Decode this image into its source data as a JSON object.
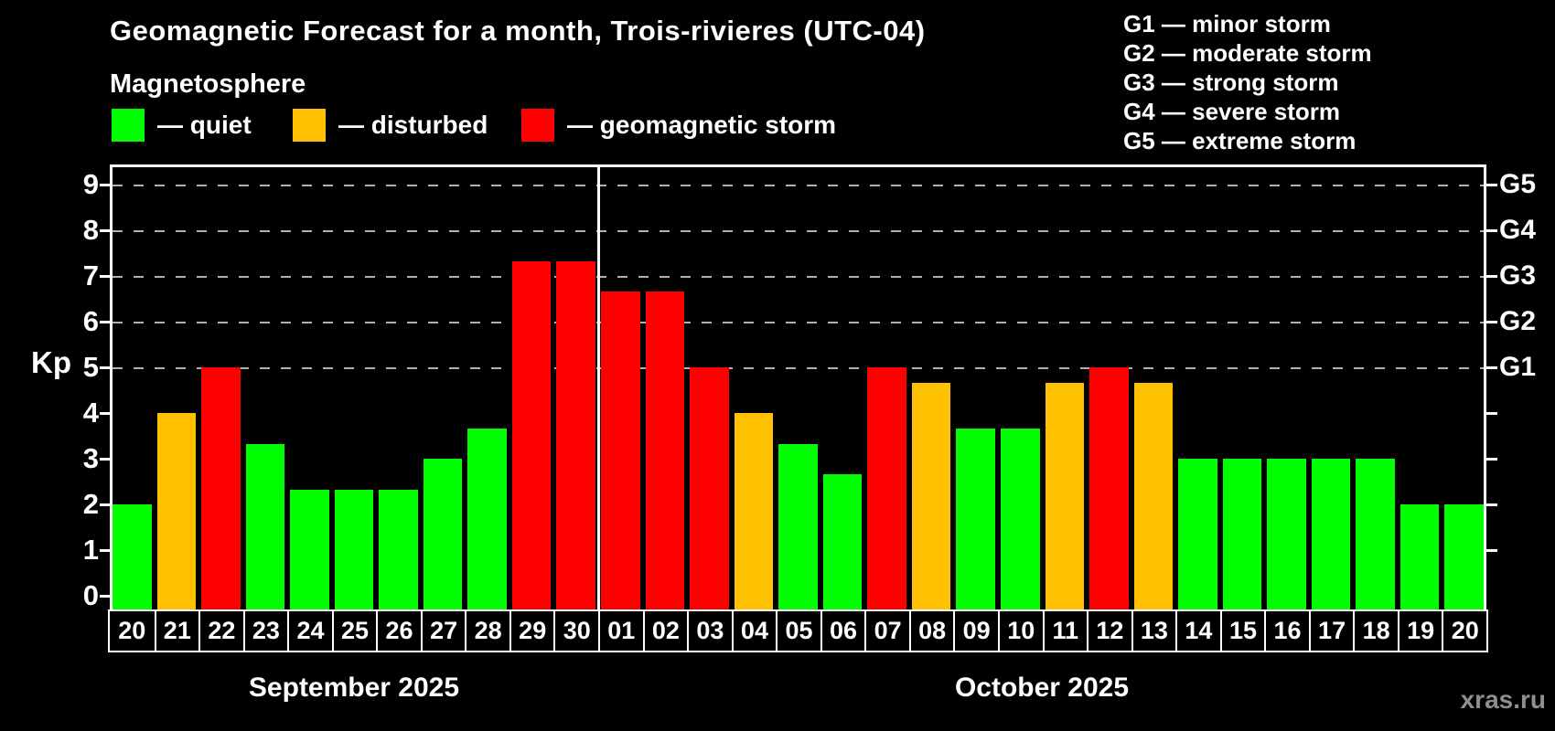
{
  "title": "Geomagnetic Forecast for a month, Trois-rivieres (UTC-04)",
  "subtitle": "Magnetosphere",
  "legend": {
    "items": [
      {
        "label": "— quiet",
        "level": "quiet"
      },
      {
        "label": "— disturbed",
        "level": "disturbed"
      },
      {
        "label": "— geomagnetic storm",
        "level": "storm"
      }
    ]
  },
  "storm_scale": [
    "G1 — minor storm",
    "G2 — moderate storm",
    "G3 — strong storm",
    "G4 — severe storm",
    "G5 — extreme storm"
  ],
  "colors": {
    "quiet": "#00ff00",
    "disturbed": "#ffc000",
    "storm": "#ff0000",
    "background": "#000000",
    "grid": "#b0b0b0",
    "axis": "#ffffff",
    "watermark": "#8f8f8f"
  },
  "watermark": "xras.ru",
  "chart_data": {
    "type": "bar",
    "title": "Geomagnetic Forecast for a month, Trois-rivieres (UTC-04)",
    "ylabel": "Kp",
    "ylim": [
      0,
      9.44
    ],
    "yticks": [
      0,
      1,
      2,
      3,
      4,
      5,
      6,
      7,
      8,
      9
    ],
    "grid": {
      "dashed_at_kp": [
        5,
        6,
        7,
        8,
        9
      ]
    },
    "right_axis": {
      "tick_kp": [
        1,
        2,
        3,
        4,
        5,
        6,
        7,
        8,
        9
      ],
      "labels": [
        {
          "label": "G5",
          "kp": 9
        },
        {
          "label": "G4",
          "kp": 8
        },
        {
          "label": "G3",
          "kp": 7
        },
        {
          "label": "G2",
          "kp": 6
        },
        {
          "label": "G1",
          "kp": 5
        }
      ]
    },
    "months": [
      {
        "label": "September 2025",
        "days": 11
      },
      {
        "label": "October 2025",
        "days": 20
      }
    ],
    "points": [
      {
        "day": "20",
        "kp": 2.0,
        "level": "quiet"
      },
      {
        "day": "21",
        "kp": 4.0,
        "level": "disturbed"
      },
      {
        "day": "22",
        "kp": 5.0,
        "level": "storm"
      },
      {
        "day": "23",
        "kp": 3.33,
        "level": "quiet"
      },
      {
        "day": "24",
        "kp": 2.33,
        "level": "quiet"
      },
      {
        "day": "25",
        "kp": 2.33,
        "level": "quiet"
      },
      {
        "day": "26",
        "kp": 2.33,
        "level": "quiet"
      },
      {
        "day": "27",
        "kp": 3.0,
        "level": "quiet"
      },
      {
        "day": "28",
        "kp": 3.67,
        "level": "quiet"
      },
      {
        "day": "29",
        "kp": 7.33,
        "level": "storm"
      },
      {
        "day": "30",
        "kp": 7.33,
        "level": "storm"
      },
      {
        "day": "01",
        "kp": 6.67,
        "level": "storm"
      },
      {
        "day": "02",
        "kp": 6.67,
        "level": "storm"
      },
      {
        "day": "03",
        "kp": 5.0,
        "level": "storm"
      },
      {
        "day": "04",
        "kp": 4.0,
        "level": "disturbed"
      },
      {
        "day": "05",
        "kp": 3.33,
        "level": "quiet"
      },
      {
        "day": "06",
        "kp": 2.67,
        "level": "quiet"
      },
      {
        "day": "07",
        "kp": 5.0,
        "level": "storm"
      },
      {
        "day": "08",
        "kp": 4.67,
        "level": "disturbed"
      },
      {
        "day": "09",
        "kp": 3.67,
        "level": "quiet"
      },
      {
        "day": "10",
        "kp": 3.67,
        "level": "quiet"
      },
      {
        "day": "11",
        "kp": 4.67,
        "level": "disturbed"
      },
      {
        "day": "12",
        "kp": 5.0,
        "level": "storm"
      },
      {
        "day": "13",
        "kp": 4.67,
        "level": "disturbed"
      },
      {
        "day": "14",
        "kp": 3.0,
        "level": "quiet"
      },
      {
        "day": "15",
        "kp": 3.0,
        "level": "quiet"
      },
      {
        "day": "16",
        "kp": 3.0,
        "level": "quiet"
      },
      {
        "day": "17",
        "kp": 3.0,
        "level": "quiet"
      },
      {
        "day": "18",
        "kp": 3.0,
        "level": "quiet"
      },
      {
        "day": "19",
        "kp": 2.0,
        "level": "quiet"
      },
      {
        "day": "20",
        "kp": 2.0,
        "level": "quiet"
      }
    ]
  }
}
